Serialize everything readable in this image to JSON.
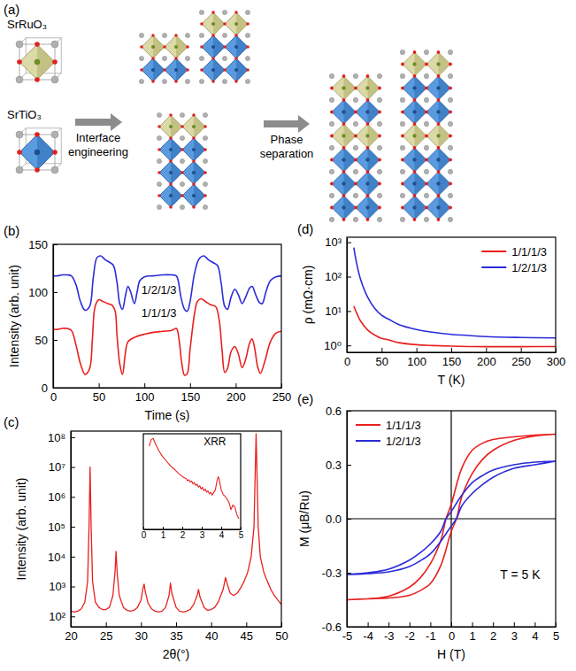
{
  "diagram": {
    "panel": "(a)",
    "structures": [
      "SrRuO₃",
      "SrTiO₃"
    ],
    "steps": [
      "Interface engineering",
      "Phase separation"
    ]
  },
  "chart_data": [
    {
      "type": "line",
      "panel": "(b)",
      "x_label": "Time (s)",
      "y_label": "Intensity (arb. unit)",
      "xlim": [
        0,
        250
      ],
      "xticks": [
        0,
        50,
        100,
        150,
        200,
        250
      ],
      "ylim": [
        0,
        150
      ],
      "yticks": [
        0,
        50,
        100,
        150
      ],
      "series": [
        {
          "name": "1/2/1/3",
          "color": "#2b2bd9",
          "x": [
            0,
            5,
            10,
            15,
            20,
            25,
            30,
            35,
            40,
            44,
            48,
            52,
            57,
            62,
            66,
            70,
            73,
            76,
            79,
            82,
            85,
            89,
            92,
            95,
            100,
            110,
            120,
            130,
            135,
            137,
            140,
            144,
            147,
            150,
            155,
            160,
            165,
            170,
            175,
            180,
            184,
            188,
            191,
            195,
            199,
            203,
            207,
            211,
            215,
            218,
            222,
            226,
            229,
            233,
            238,
            244,
            250
          ],
          "values": [
            117,
            117,
            118,
            118,
            117,
            108,
            90,
            81,
            85,
            115,
            136,
            138,
            134,
            131,
            128,
            110,
            88,
            82,
            95,
            106,
            100,
            88,
            100,
            112,
            116,
            117,
            118,
            118,
            117,
            112,
            95,
            82,
            80,
            90,
            120,
            135,
            138,
            134,
            131,
            128,
            110,
            85,
            82,
            95,
            103,
            97,
            88,
            95,
            104,
            106,
            97,
            89,
            88,
            100,
            112,
            116,
            117
          ]
        },
        {
          "name": "1/1/1/3",
          "color": "#e8201e",
          "x": [
            0,
            5,
            10,
            15,
            20,
            25,
            30,
            35,
            40,
            43,
            46,
            50,
            55,
            60,
            65,
            68,
            70,
            73,
            76,
            79,
            82,
            90,
            100,
            110,
            120,
            130,
            135,
            138,
            141,
            144,
            147,
            150,
            155,
            158,
            162,
            167,
            172,
            178,
            182,
            185,
            188,
            191,
            195,
            199,
            203,
            207,
            211,
            215,
            218,
            221,
            224,
            227,
            232,
            238,
            244,
            250
          ],
          "values": [
            61,
            61,
            62,
            62,
            60,
            45,
            25,
            14,
            20,
            50,
            85,
            92,
            90,
            88,
            86,
            80,
            55,
            25,
            14,
            35,
            48,
            53,
            56,
            58,
            59,
            60,
            62,
            50,
            25,
            13,
            15,
            40,
            78,
            90,
            93,
            90,
            87,
            85,
            70,
            40,
            16,
            20,
            38,
            43,
            35,
            21,
            30,
            46,
            51,
            40,
            22,
            15,
            28,
            48,
            57,
            59
          ]
        }
      ]
    },
    {
      "type": "line",
      "panel": "(c)",
      "x_label": "2θ(°)",
      "y_label": "Intensity (arb. unit)",
      "log": "y",
      "xlim": [
        20,
        50
      ],
      "xticks": [
        20,
        25,
        30,
        35,
        40,
        45,
        50
      ],
      "ylim": [
        45,
        160000000
      ],
      "yticks": [
        {
          "value": 100,
          "label": "10²"
        },
        {
          "value": 1000,
          "label": "10³"
        },
        {
          "value": 10000,
          "label": "10⁴"
        },
        {
          "value": 100000,
          "label": "10⁵"
        },
        {
          "value": 1000000,
          "label": "10⁶"
        },
        {
          "value": 10000000,
          "label": "10⁷"
        },
        {
          "value": 100000000,
          "label": "10⁸"
        }
      ],
      "series": [
        {
          "color": "#e8201e",
          "x": [
            20,
            20.5,
            21,
            21.5,
            22,
            22.4,
            22.6,
            22.75,
            22.9,
            23.1,
            23.5,
            24,
            24.5,
            25,
            25.5,
            26,
            26.3,
            26.45,
            26.6,
            26.9,
            27.5,
            28,
            28.5,
            29,
            29.5,
            30,
            30.3,
            30.45,
            30.6,
            31,
            31.5,
            32,
            32.5,
            33,
            33.5,
            34,
            34.2,
            34.4,
            35,
            35.5,
            36,
            36.5,
            37,
            37.5,
            38,
            38.2,
            38.4,
            39,
            39.5,
            40,
            40.5,
            41,
            41.7,
            42.05,
            42.3,
            42.7,
            43.2,
            43.7,
            44.2,
            44.7,
            45.2,
            45.7,
            46.1,
            46.4,
            46.7,
            47,
            47.5,
            48,
            48.5,
            49,
            49.5,
            50
          ],
          "values": [
            150,
            140,
            150,
            180,
            300,
            1500,
            100000,
            10000000,
            100000,
            1500,
            300,
            200,
            170,
            170,
            200,
            500,
            3000,
            15000,
            3000,
            500,
            200,
            160,
            150,
            160,
            200,
            350,
            900,
            1200,
            700,
            280,
            180,
            150,
            140,
            150,
            200,
            500,
            1300,
            600,
            200,
            150,
            140,
            150,
            170,
            250,
            500,
            800,
            450,
            200,
            160,
            170,
            200,
            300,
            800,
            2000,
            1200,
            600,
            500,
            600,
            900,
            1500,
            3000,
            10000,
            100000,
            130000000,
            100000,
            10000,
            3000,
            1500,
            800,
            500,
            350,
            250
          ]
        }
      ]
    },
    {
      "type": "line",
      "annotations": [
        "XRR"
      ],
      "log": "y",
      "tick_labels": "x",
      "xlim": [
        0,
        5
      ],
      "xticks": [
        0,
        1,
        2,
        3,
        4,
        5
      ],
      "ylim": [
        1e-06,
        2
      ],
      "series": [
        {
          "color": "#e8201e",
          "x": [
            0.3,
            0.4,
            0.5,
            0.6,
            0.8,
            1.0,
            1.2,
            1.4,
            1.6,
            1.8,
            2.0,
            2.2,
            2.27,
            2.34,
            2.41,
            2.48,
            2.55,
            2.62,
            2.69,
            2.76,
            2.83,
            2.9,
            2.97,
            3.04,
            3.11,
            3.18,
            3.25,
            3.32,
            3.39,
            3.46,
            3.53,
            3.6,
            3.7,
            3.78,
            3.85,
            3.92,
            4.0,
            4.1,
            4.2,
            4.3,
            4.4,
            4.5,
            4.6,
            4.7,
            4.8,
            4.9
          ],
          "values": [
            0.3,
            0.8,
            1.0,
            0.5,
            0.15,
            0.06,
            0.03,
            0.015,
            0.009,
            0.005,
            0.003,
            0.0022,
            0.0016,
            0.0019,
            0.0013,
            0.0015,
            0.001,
            0.0012,
            0.0008,
            0.00095,
            0.0006,
            0.00075,
            0.00045,
            0.0006,
            0.00035,
            0.00045,
            0.00028,
            0.00035,
            0.00022,
            0.00028,
            0.00018,
            0.00025,
            0.0004,
            0.0015,
            0.003,
            0.0015,
            0.0004,
            0.0002,
            0.00015,
            0.0001,
            6e-05,
            2e-05,
            4e-05,
            3e-05,
            1e-05,
            5e-06
          ]
        }
      ]
    },
    {
      "type": "line",
      "panel": "(d)",
      "x_label": "T (K)",
      "y_label": "ρ (mΩ·cm)",
      "log": "y",
      "legend": "upper right",
      "xlim": [
        0,
        300
      ],
      "xticks": [
        0,
        50,
        100,
        150,
        200,
        250,
        300
      ],
      "ylim": [
        0.63,
        1400
      ],
      "yticks": [
        {
          "value": 1,
          "label": "10⁰"
        },
        {
          "value": 10,
          "label": "10¹"
        },
        {
          "value": 100,
          "label": "10²"
        },
        {
          "value": 1000,
          "label": "10³"
        }
      ],
      "series": [
        {
          "name": "1/1/1/3",
          "color": "#e8201e",
          "x": [
            10,
            12,
            15,
            20,
            30,
            40,
            50,
            60,
            75,
            100,
            125,
            150,
            175,
            200,
            250,
            300
          ],
          "values": [
            14,
            11,
            8,
            5,
            2.8,
            2.0,
            1.6,
            1.45,
            1.2,
            1.05,
            0.99,
            0.95,
            0.93,
            0.92,
            0.92,
            0.93
          ]
        },
        {
          "name": "1/2/1/3",
          "color": "#2b2bd9",
          "x": [
            10,
            12,
            15,
            20,
            30,
            40,
            50,
            60,
            75,
            100,
            125,
            150,
            175,
            200,
            250,
            300
          ],
          "values": [
            700,
            400,
            200,
            80,
            25,
            12,
            7.5,
            5.8,
            4,
            2.9,
            2.4,
            2.1,
            1.95,
            1.8,
            1.7,
            1.65
          ]
        }
      ]
    },
    {
      "type": "line",
      "panel": "(e)",
      "x_label": "H (T)",
      "y_label": "M (μB/Ru)",
      "legend": "upper left",
      "annotations": [
        "T = 5 K"
      ],
      "xlim": [
        -5,
        5
      ],
      "xticks": [
        -5,
        -4,
        -3,
        -2,
        -1,
        0,
        1,
        2,
        3,
        4,
        5
      ],
      "ylim": [
        -0.6,
        0.6
      ],
      "yticks": [
        -0.6,
        -0.3,
        {
          "value": 0,
          "label": "0.0"
        },
        0.3,
        0.6
      ],
      "series": [
        {
          "name": "1/1/1/3",
          "color": "#e8201e",
          "x": [
            5,
            4,
            3,
            2,
            1.5,
            1,
            0.5,
            0,
            -0.25,
            -0.5,
            -1,
            -1.5,
            -2,
            -3,
            -4,
            -5,
            -4,
            -3,
            -2,
            -1.5,
            -1,
            -0.5,
            0,
            0.25,
            0.5,
            1,
            1.5,
            2,
            3,
            4,
            5
          ],
          "values": [
            0.47,
            0.465,
            0.455,
            0.44,
            0.42,
            0.38,
            0.28,
            0.08,
            0,
            -0.12,
            -0.25,
            -0.33,
            -0.38,
            -0.43,
            -0.445,
            -0.45,
            -0.445,
            -0.44,
            -0.425,
            -0.4,
            -0.36,
            -0.26,
            -0.07,
            0,
            0.12,
            0.25,
            0.33,
            0.38,
            0.435,
            0.46,
            0.47
          ]
        },
        {
          "name": "1/2/1/3",
          "color": "#2b2bd9",
          "x": [
            5,
            4,
            3,
            2,
            1.5,
            1,
            0.5,
            0,
            -0.25,
            -0.5,
            -1,
            -1.5,
            -2,
            -3,
            -4,
            -5,
            -4,
            -3,
            -2,
            -1.5,
            -1,
            -0.5,
            0,
            0.25,
            0.5,
            1,
            1.5,
            2,
            3,
            4,
            5
          ],
          "values": [
            0.32,
            0.315,
            0.3,
            0.27,
            0.24,
            0.2,
            0.13,
            0.04,
            0,
            -0.07,
            -0.14,
            -0.19,
            -0.23,
            -0.28,
            -0.3,
            -0.31,
            -0.305,
            -0.295,
            -0.265,
            -0.235,
            -0.195,
            -0.125,
            -0.04,
            0,
            0.07,
            0.14,
            0.19,
            0.23,
            0.28,
            0.3,
            0.32
          ]
        }
      ]
    }
  ]
}
